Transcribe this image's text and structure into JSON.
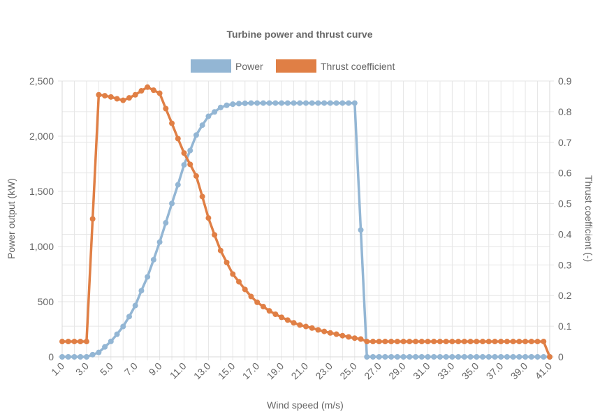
{
  "chart_data": {
    "type": "line",
    "title": "Turbine power and thrust curve",
    "xlabel": "Wind speed (m/s)",
    "ylabel_left": "Power output (kW)",
    "ylabel_right": "Thrust coefficient (-)",
    "x_tick_labels": [
      "1.0",
      "3.0",
      "5.0",
      "7.0",
      "9.0",
      "11.0",
      "13.0",
      "15.0",
      "17.0",
      "19.0",
      "21.0",
      "23.0",
      "25.0",
      "27.0",
      "29.0",
      "31.0",
      "33.0",
      "35.0",
      "37.0",
      "39.0",
      "41.0"
    ],
    "y_left_tick_labels": [
      "0",
      "500",
      "1,000",
      "1,500",
      "2,000",
      "2,500"
    ],
    "y_right_tick_labels": [
      "0",
      "0.1",
      "0.2",
      "0.3",
      "0.4",
      "0.5",
      "0.6",
      "0.7",
      "0.8",
      "0.9"
    ],
    "xlim": [
      1.0,
      41.0
    ],
    "ylim_left": [
      0,
      2500
    ],
    "ylim_right": [
      0,
      0.9
    ],
    "grid": true,
    "legend_position": "top",
    "colors": {
      "power": "#93b6d4",
      "thrust": "#e07f45",
      "grid": "#e6e6e6",
      "text": "#666666"
    },
    "x": [
      1.0,
      1.5,
      2.0,
      2.5,
      3.0,
      3.5,
      4.0,
      4.5,
      5.0,
      5.5,
      6.0,
      6.5,
      7.0,
      7.5,
      8.0,
      8.5,
      9.0,
      9.5,
      10.0,
      10.5,
      11.0,
      11.5,
      12.0,
      12.5,
      13.0,
      13.5,
      14.0,
      14.5,
      15.0,
      15.5,
      16.0,
      16.5,
      17.0,
      17.5,
      18.0,
      18.5,
      19.0,
      19.5,
      20.0,
      20.5,
      21.0,
      21.5,
      22.0,
      22.5,
      23.0,
      23.5,
      24.0,
      24.5,
      25.0,
      25.5,
      26.0,
      26.5,
      27.0,
      27.5,
      28.0,
      28.5,
      29.0,
      29.5,
      30.0,
      30.5,
      31.0,
      31.5,
      32.0,
      32.5,
      33.0,
      33.5,
      34.0,
      34.5,
      35.0,
      35.5,
      36.0,
      36.5,
      37.0,
      37.5,
      38.0,
      38.5,
      39.0,
      39.5,
      40.0,
      40.5,
      41.0
    ],
    "series": [
      {
        "name": "Power",
        "axis": "left",
        "values": [
          0,
          0,
          0,
          0,
          0,
          20,
          40,
          90,
          140,
          205,
          275,
          365,
          465,
          600,
          725,
          880,
          1040,
          1215,
          1390,
          1560,
          1740,
          1870,
          2010,
          2100,
          2180,
          2220,
          2260,
          2280,
          2290,
          2295,
          2298,
          2300,
          2300,
          2300,
          2300,
          2300,
          2300,
          2300,
          2300,
          2300,
          2300,
          2300,
          2300,
          2300,
          2300,
          2300,
          2300,
          2300,
          2300,
          1150,
          0,
          0,
          0,
          0,
          0,
          0,
          0,
          0,
          0,
          0,
          0,
          0,
          0,
          0,
          0,
          0,
          0,
          0,
          0,
          0,
          0,
          0,
          0,
          0,
          0,
          0,
          0,
          0,
          0,
          0,
          0
        ]
      },
      {
        "name": "Thrust coefficient",
        "axis": "right",
        "values": [
          0.05,
          0.05,
          0.05,
          0.05,
          0.05,
          0.45,
          0.855,
          0.852,
          0.848,
          0.842,
          0.837,
          0.845,
          0.855,
          0.868,
          0.88,
          0.87,
          0.86,
          0.81,
          0.762,
          0.712,
          0.665,
          0.628,
          0.59,
          0.523,
          0.453,
          0.398,
          0.347,
          0.308,
          0.27,
          0.245,
          0.22,
          0.197,
          0.178,
          0.164,
          0.15,
          0.139,
          0.129,
          0.12,
          0.111,
          0.104,
          0.099,
          0.094,
          0.088,
          0.083,
          0.078,
          0.074,
          0.069,
          0.065,
          0.061,
          0.058,
          0.05,
          0.05,
          0.05,
          0.05,
          0.05,
          0.05,
          0.05,
          0.05,
          0.05,
          0.05,
          0.05,
          0.05,
          0.05,
          0.05,
          0.05,
          0.05,
          0.05,
          0.05,
          0.05,
          0.05,
          0.05,
          0.05,
          0.05,
          0.05,
          0.05,
          0.05,
          0.05,
          0.05,
          0.05,
          0.05,
          0.0
        ]
      }
    ]
  }
}
